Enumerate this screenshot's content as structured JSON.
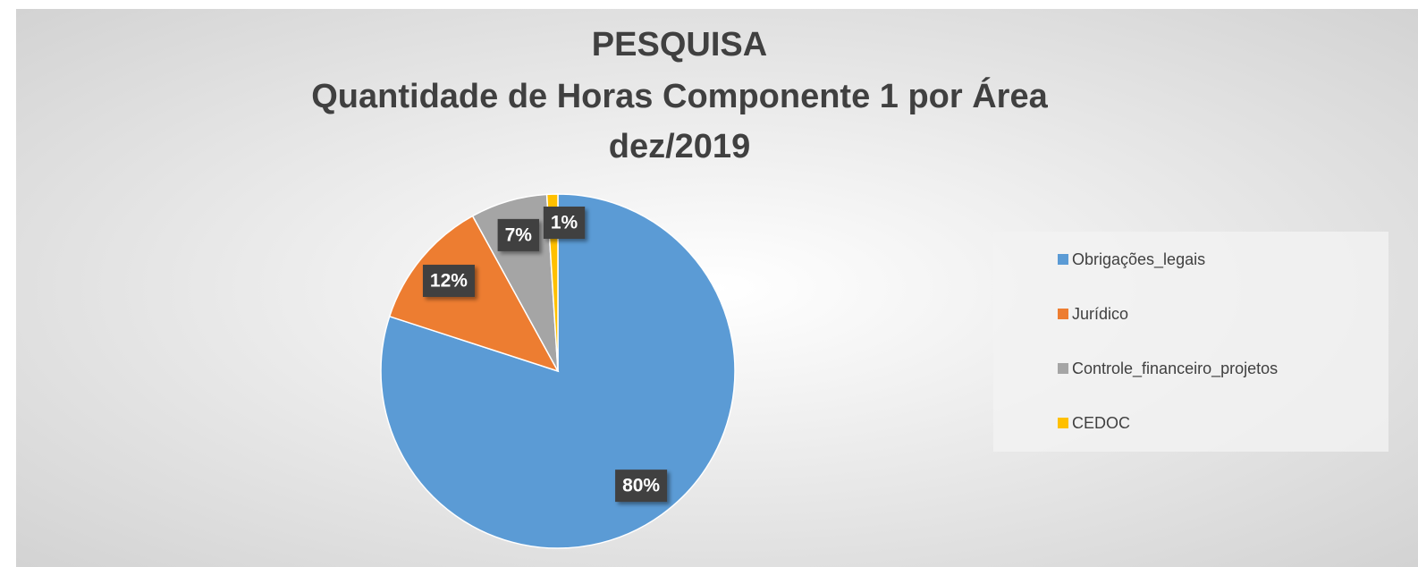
{
  "chart_data": {
    "type": "pie",
    "title": [
      "PESQUISA",
      "Quantidade de Horas Componente 1 por Área",
      "dez/2019"
    ],
    "categories": [
      "Obrigações_legais",
      "Jurídico",
      "Controle_financeiro_projetos",
      "CEDOC"
    ],
    "values": [
      80,
      12,
      7,
      1
    ],
    "value_labels": [
      "80%",
      "12%",
      "7%",
      "1%"
    ],
    "colors": [
      "#5b9bd5",
      "#ed7d31",
      "#a5a5a5",
      "#ffc000"
    ],
    "legend": "right"
  }
}
